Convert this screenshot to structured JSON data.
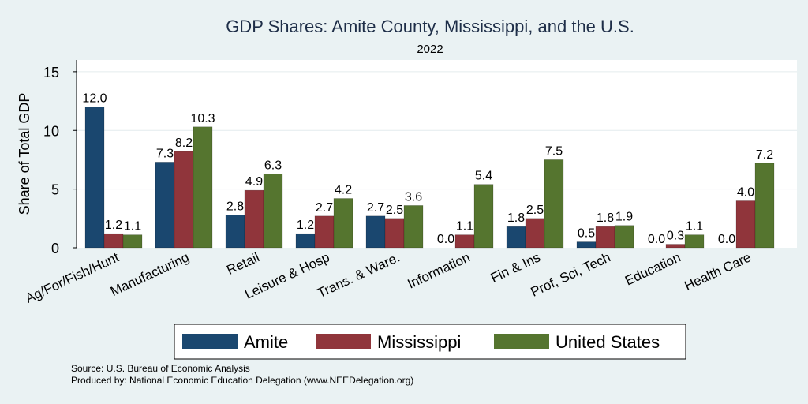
{
  "chart_data": {
    "type": "bar",
    "title": "GDP Shares: Amite County, Mississippi, and the U.S.",
    "subtitle": "2022",
    "ylabel": "Share of Total GDP",
    "xlabel": "",
    "ylim": [
      0,
      16
    ],
    "yticks": [
      0,
      5,
      10,
      15
    ],
    "categories": [
      "Ag/For/Fish/Hunt",
      "Manufacturing",
      "Retail",
      "Leisure & Hosp",
      "Trans. & Ware.",
      "Information",
      "Fin & Ins",
      "Prof, Sci, Tech",
      "Education",
      "Health Care"
    ],
    "series": [
      {
        "name": "Amite",
        "color": "#1a476f",
        "values": [
          12.0,
          7.3,
          2.8,
          1.2,
          2.7,
          0.0,
          1.8,
          0.5,
          0.0,
          0.0
        ]
      },
      {
        "name": "Mississippi",
        "color": "#90353b",
        "values": [
          1.2,
          8.2,
          4.9,
          2.7,
          2.5,
          1.1,
          2.5,
          1.8,
          0.3,
          4.0
        ]
      },
      {
        "name": "United States",
        "color": "#55752f",
        "values": [
          1.1,
          10.3,
          6.3,
          4.2,
          3.6,
          5.4,
          7.5,
          1.9,
          1.1,
          7.2
        ]
      }
    ],
    "legend_position": "bottom",
    "grid": true
  },
  "footer": {
    "source": "Source: U.S. Bureau of Economic Analysis",
    "produced_by": "Produced by: National Economic Education Delegation (www.NEEDelegation.org)"
  }
}
